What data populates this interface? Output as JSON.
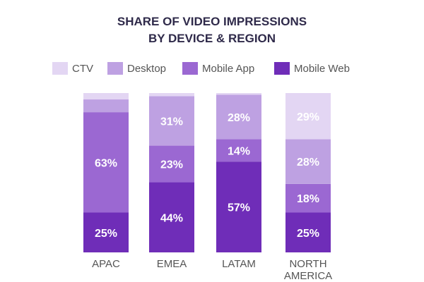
{
  "chart_data": {
    "type": "bar",
    "stacked": true,
    "title_lines": [
      "SHARE OF VIDEO IMPRESSIONS",
      "BY DEVICE & REGION"
    ],
    "legend_position": "top",
    "grid": false,
    "categories": [
      "APAC",
      "EMEA",
      "LATAM",
      "NORTH AMERICA"
    ],
    "category_label_lines": [
      [
        "APAC"
      ],
      [
        "EMEA"
      ],
      [
        "LATAM"
      ],
      [
        "NORTH",
        "AMERICA"
      ]
    ],
    "ylim": [
      0,
      100
    ],
    "series": [
      {
        "name": "Mobile Web",
        "color": "#6f2db8",
        "values": [
          25,
          44,
          57,
          25
        ],
        "labels": [
          "25%",
          "44%",
          "57%",
          "25%"
        ]
      },
      {
        "name": "Mobile App",
        "color": "#9b68d2",
        "values": [
          63,
          23,
          14,
          18
        ],
        "labels": [
          "63%",
          "23%",
          "14%",
          "18%"
        ]
      },
      {
        "name": "Desktop",
        "color": "#bea1e2",
        "values": [
          8,
          31,
          28,
          28
        ],
        "labels": [
          "",
          "31%",
          "28%",
          "28%"
        ]
      },
      {
        "name": "CTV",
        "color": "#e3d6f3",
        "values": [
          4,
          2,
          1,
          29
        ],
        "labels": [
          "",
          "",
          "",
          "29%"
        ]
      }
    ],
    "legend_order": [
      "CTV",
      "Desktop",
      "Mobile App",
      "Mobile Web"
    ]
  }
}
